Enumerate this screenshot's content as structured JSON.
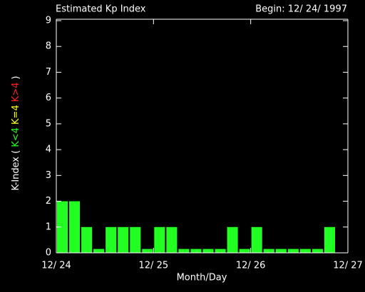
{
  "chart_data": {
    "type": "histogram",
    "title": "Estimated Kp Index",
    "subtitle": "Begin: 12/ 24/ 1997",
    "x_label": "Month/Day",
    "y_label": [
      "K-Index (",
      "K<4",
      "K=4",
      "K>4",
      ")"
    ],
    "y_label_colors": [
      "#ffffff",
      "#22ff22",
      "#ffff22",
      "#ff2222",
      "#ffffff"
    ],
    "bins": [
      24,
      24.125,
      24.25,
      24.375,
      24.5,
      24.625,
      24.75,
      24.875,
      25,
      25.125,
      25.25,
      25.375,
      25.5,
      25.625,
      25.75,
      25.875,
      26,
      26.125,
      26.25,
      26.375,
      26.5,
      26.625,
      26.75,
      26.875,
      27
    ],
    "values": [
      2,
      2,
      1,
      0.15,
      1,
      1,
      1,
      0.15,
      1,
      1,
      0.15,
      0.15,
      0.15,
      0.15,
      1,
      0.15,
      1,
      0.15,
      0.15,
      0.15,
      0.15,
      0.15,
      1,
      null
    ],
    "color": "#22ff22",
    "xlim": [
      24,
      27
    ],
    "xticks": [
      {
        "value": 24,
        "label": "12/ 24"
      },
      {
        "value": 25,
        "label": "12/ 25"
      },
      {
        "value": 26,
        "label": "12/ 26"
      },
      {
        "value": 27,
        "label": "12/ 27"
      }
    ],
    "ylim": [
      0,
      9
    ],
    "yticks": [
      0,
      1,
      2,
      3,
      4,
      5,
      6,
      7,
      8,
      9
    ]
  }
}
